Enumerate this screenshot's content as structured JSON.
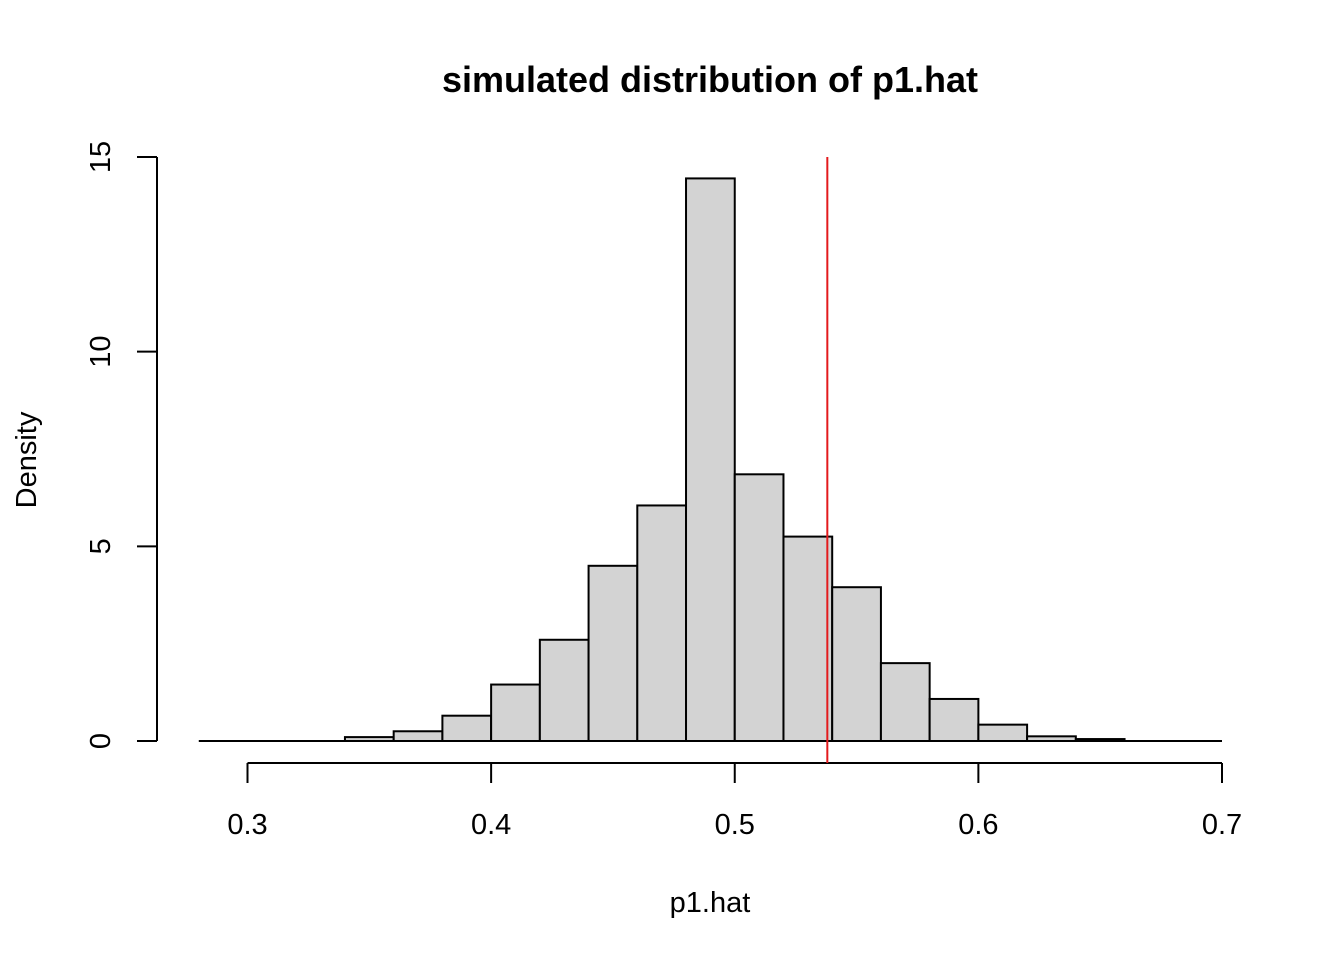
{
  "chart_data": {
    "type": "bar",
    "subtype": "histogram",
    "title": "simulated distribution of p1.hat",
    "xlabel": "p1.hat",
    "ylabel": "Density",
    "xlim": [
      0.3,
      0.7
    ],
    "ylim": [
      0,
      15
    ],
    "x_ticks": [
      0.3,
      0.4,
      0.5,
      0.6,
      0.7
    ],
    "x_tick_labels": [
      "0.3",
      "0.4",
      "0.5",
      "0.6",
      "0.7"
    ],
    "y_ticks": [
      0,
      5,
      10,
      15
    ],
    "y_tick_labels": [
      "0",
      "5",
      "10",
      "15"
    ],
    "bin_width": 0.02,
    "bins": [
      {
        "start": 0.28,
        "end": 0.3,
        "density": 0.0
      },
      {
        "start": 0.3,
        "end": 0.32,
        "density": 0.0
      },
      {
        "start": 0.32,
        "end": 0.34,
        "density": 0.0
      },
      {
        "start": 0.34,
        "end": 0.36,
        "density": 0.1
      },
      {
        "start": 0.36,
        "end": 0.38,
        "density": 0.25
      },
      {
        "start": 0.38,
        "end": 0.4,
        "density": 0.65
      },
      {
        "start": 0.4,
        "end": 0.42,
        "density": 1.45
      },
      {
        "start": 0.42,
        "end": 0.44,
        "density": 2.6
      },
      {
        "start": 0.44,
        "end": 0.46,
        "density": 4.5
      },
      {
        "start": 0.46,
        "end": 0.48,
        "density": 6.05
      },
      {
        "start": 0.48,
        "end": 0.5,
        "density": 14.45
      },
      {
        "start": 0.5,
        "end": 0.52,
        "density": 6.85
      },
      {
        "start": 0.52,
        "end": 0.54,
        "density": 5.25
      },
      {
        "start": 0.54,
        "end": 0.56,
        "density": 3.95
      },
      {
        "start": 0.56,
        "end": 0.58,
        "density": 2.0
      },
      {
        "start": 0.58,
        "end": 0.6,
        "density": 1.08
      },
      {
        "start": 0.6,
        "end": 0.62,
        "density": 0.42
      },
      {
        "start": 0.62,
        "end": 0.64,
        "density": 0.12
      },
      {
        "start": 0.64,
        "end": 0.66,
        "density": 0.05
      },
      {
        "start": 0.66,
        "end": 0.68,
        "density": 0.0
      },
      {
        "start": 0.68,
        "end": 0.7,
        "density": 0.0
      }
    ],
    "reference_line": {
      "x": 0.538,
      "color": "#e31a1c"
    },
    "bar_fill": "#d3d3d3",
    "bar_stroke": "#000000",
    "grid": false,
    "legend": "none"
  }
}
